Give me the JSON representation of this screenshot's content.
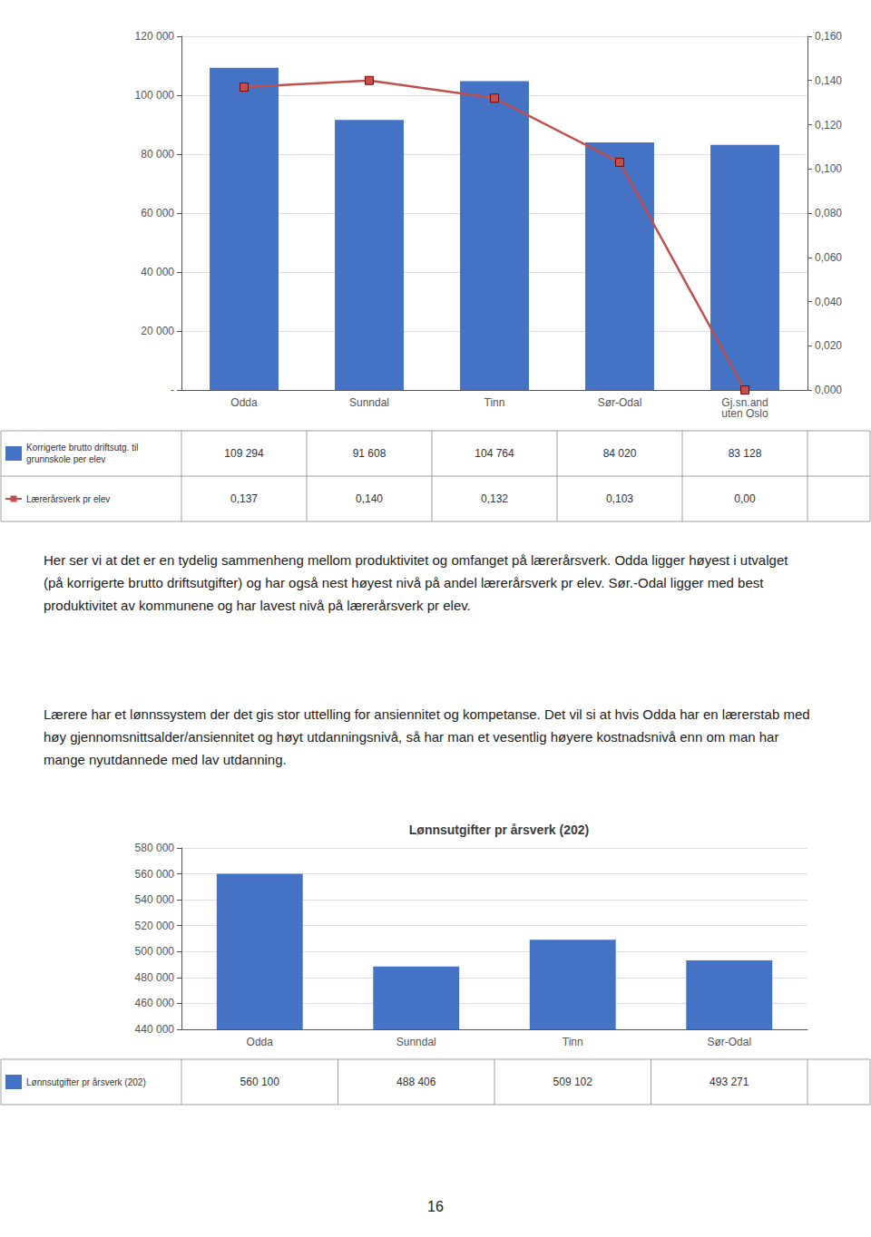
{
  "chart_data": [
    {
      "type": "bar",
      "categories": [
        "Odda",
        "Sunndal",
        "Tinn",
        "Sør-Odal",
        "Gj.sn.and\nuten Oslo"
      ],
      "series": [
        {
          "name": "Korrigerte brutto driftsutg. til\ngrunnskole per elev",
          "type": "bar",
          "color": "#4472C4",
          "values": [
            109294,
            91608,
            104764,
            84020,
            83128
          ],
          "value_labels": [
            "109 294",
            "91 608",
            "104 764",
            "84 020",
            "83 128"
          ]
        },
        {
          "name": "Lærerårsverk pr elev",
          "type": "line",
          "axis": "y2",
          "color": "#C0504D",
          "marker": "square",
          "values": [
            0.137,
            0.14,
            0.132,
            0.103,
            0.0
          ],
          "value_labels": [
            "0,137",
            "0,140",
            "0,132",
            "0,103",
            "0,00"
          ]
        }
      ],
      "ylim": [
        0,
        120000
      ],
      "yticks": [
        {
          "value": 0,
          "label": "-"
        },
        {
          "value": 20000,
          "label": "20 000"
        },
        {
          "value": 40000,
          "label": "40 000"
        },
        {
          "value": 60000,
          "label": "60 000"
        },
        {
          "value": 80000,
          "label": "80 000"
        },
        {
          "value": 100000,
          "label": "100 000"
        },
        {
          "value": 120000,
          "label": "120 000"
        }
      ],
      "y2lim": [
        0,
        0.16
      ],
      "y2ticks": [
        {
          "value": 0,
          "label": "0,000"
        },
        {
          "value": 0.02,
          "label": "0,020"
        },
        {
          "value": 0.04,
          "label": "0,040"
        },
        {
          "value": 0.06,
          "label": "0,060"
        },
        {
          "value": 0.08,
          "label": "0,080"
        },
        {
          "value": 0.1,
          "label": "0,100"
        },
        {
          "value": 0.12,
          "label": "0,120"
        },
        {
          "value": 0.14,
          "label": "0,140"
        },
        {
          "value": 0.16,
          "label": "0,160"
        }
      ],
      "grid": true,
      "annotations": [
        "Her ser vi at det er en tydelig sammenheng mellom produktivitet og omfanget på lærerårsverk. Odda ligger høyest i utvalget (på korrigerte brutto driftsutgifter) og har også nest høyest nivå på andel lærerårsverk pr elev. Sør.-Odal ligger med best produktivitet av kommunene og har lavest nivå på lærerårsverk pr elev.",
        "Lærere har et lønnssystem der det gis stor uttelling for ansiennitet og kompetanse. Det vil si at hvis Odda har en lærerstab med høy gjennomsnittsalder/ansiennitet og høyt utdanningsnivå, så har man et vesentlig høyere kostnadsnivå enn om man har mange nyutdannede med lav utdanning."
      ]
    },
    {
      "type": "bar",
      "title": "Lønnsutgifter pr årsverk (202)",
      "categories": [
        "Odda",
        "Sunndal",
        "Tinn",
        "Sør-Odal"
      ],
      "series": [
        {
          "name": "Lønnsutgifter pr årsverk (202)",
          "type": "bar",
          "color": "#4472C4",
          "values": [
            560100,
            488406,
            509102,
            493271
          ],
          "value_labels": [
            "560 100",
            "488 406",
            "509 102",
            "493 271"
          ]
        }
      ],
      "ylim": [
        440000,
        580000
      ],
      "yticks": [
        {
          "value": 440000,
          "label": "440 000"
        },
        {
          "value": 460000,
          "label": "460 000"
        },
        {
          "value": 480000,
          "label": "480 000"
        },
        {
          "value": 500000,
          "label": "500 000"
        },
        {
          "value": 520000,
          "label": "520 000"
        },
        {
          "value": 540000,
          "label": "540 000"
        },
        {
          "value": 560000,
          "label": "560 000"
        },
        {
          "value": 580000,
          "label": "580 000"
        }
      ],
      "grid": true,
      "annotations": [
        "16"
      ]
    }
  ]
}
